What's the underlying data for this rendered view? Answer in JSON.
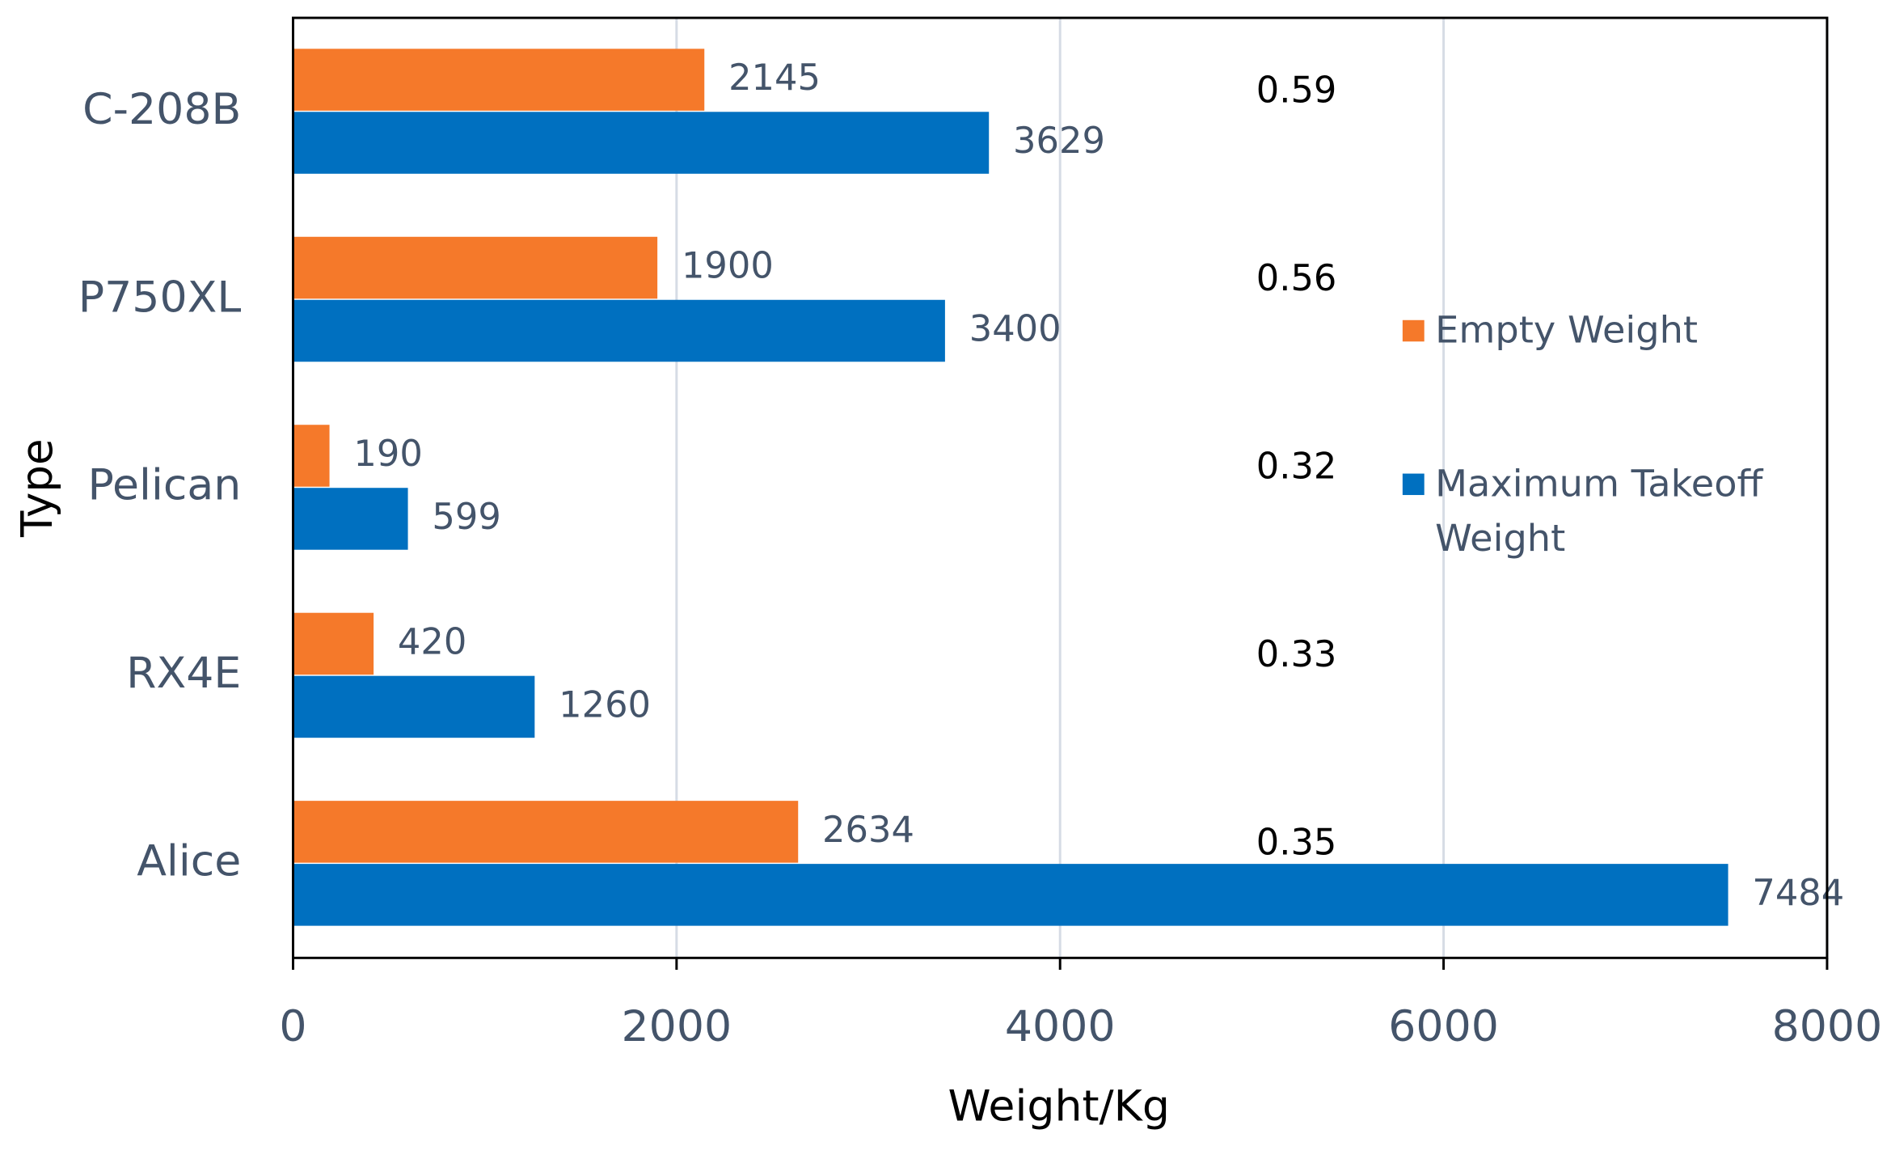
{
  "chart_data": {
    "type": "bar",
    "orientation": "horizontal",
    "categories": [
      "C-208B",
      "P750XL",
      "Pelican",
      "RX4E",
      "Alice"
    ],
    "series": [
      {
        "name": "Empty Weight",
        "color": "#f5792a",
        "values": [
          2145,
          1900,
          190,
          420,
          2634
        ]
      },
      {
        "name": "Maximum Takeoff Weight",
        "color": "#0070c0",
        "values": [
          3629,
          3400,
          599,
          1260,
          7484
        ]
      }
    ],
    "annotations": [
      "0.59",
      "0.56",
      "0.32",
      "0.33",
      "0.35"
    ],
    "x_label": "Weight/Kg",
    "y_label": "Type",
    "xlim": [
      0,
      8000
    ],
    "xticks": [
      0,
      2000,
      4000,
      6000,
      8000
    ],
    "grid": true
  }
}
